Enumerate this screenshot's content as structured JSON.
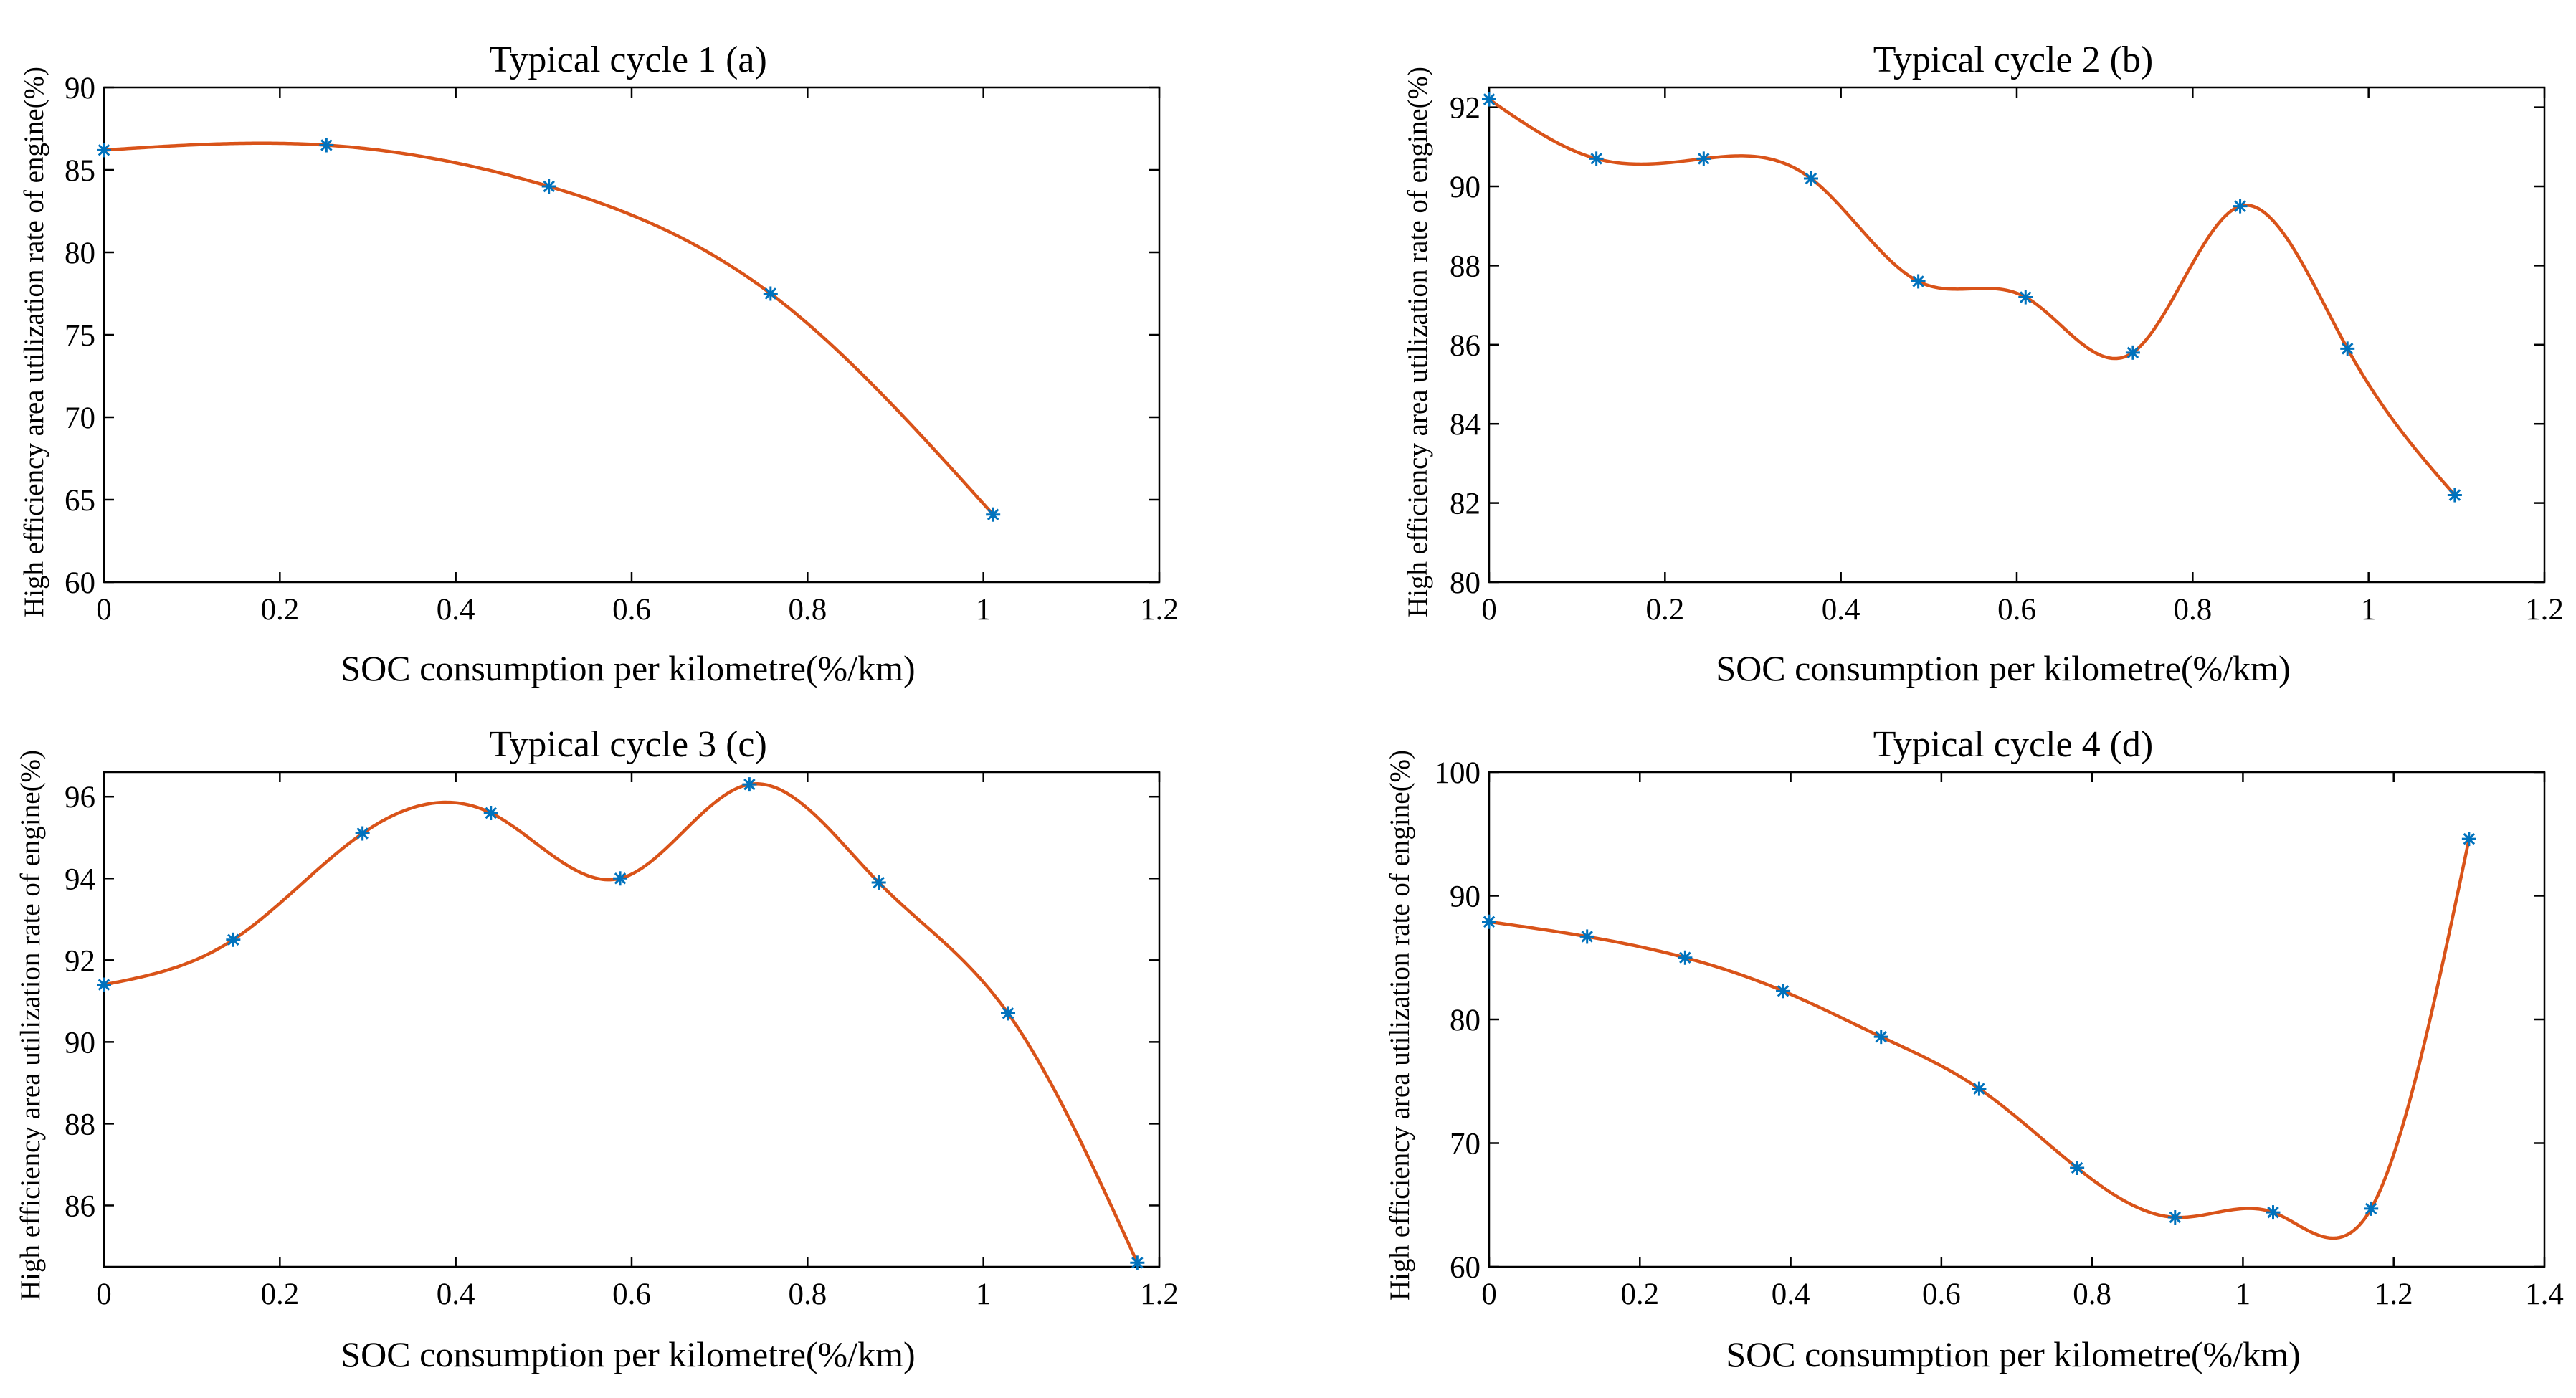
{
  "figure": {
    "x_label": "SOC consumption per kilometre(%/km)",
    "y_label": "High efficiency area utilization rate of engine(%)"
  },
  "colors": {
    "curve": "#D95319",
    "marker": "#0072BD",
    "axis": "#000000",
    "background": "#FFFFFF"
  },
  "chart_data": [
    {
      "type": "line",
      "title": "Typical cycle 1 (a)",
      "xlabel": "SOC consumption per kilometre(%/km)",
      "ylabel": "High efficiency area utilization rate of engine(%)",
      "xlim": [
        0,
        1.2
      ],
      "ylim": [
        60,
        90
      ],
      "xticks": [
        0,
        0.2,
        0.4,
        0.6,
        0.8,
        1,
        1.2
      ],
      "yticks": [
        60,
        65,
        70,
        75,
        80,
        85,
        90
      ],
      "grid": false,
      "marker": "asterisk",
      "x": [
        0,
        0.253,
        0.506,
        0.758,
        1.011
      ],
      "y": [
        86.2,
        86.5,
        84.0,
        77.5,
        64.1
      ]
    },
    {
      "type": "line",
      "title": "Typical cycle 2 (b)",
      "xlabel": "SOC consumption per kilometre(%/km)",
      "ylabel": "High efficiency area utilization rate of engine(%)",
      "xlim": [
        0,
        1.2
      ],
      "ylim": [
        80,
        92.5
      ],
      "xticks": [
        0,
        0.2,
        0.4,
        0.6,
        0.8,
        1,
        1.2
      ],
      "yticks": [
        80,
        82,
        84,
        86,
        88,
        90,
        92
      ],
      "grid": false,
      "marker": "asterisk",
      "x": [
        0,
        0.122,
        0.244,
        0.366,
        0.488,
        0.61,
        0.732,
        0.854,
        0.976,
        1.098
      ],
      "y": [
        92.2,
        90.7,
        90.7,
        90.2,
        87.6,
        87.2,
        85.8,
        89.5,
        85.9,
        82.2
      ]
    },
    {
      "type": "line",
      "title": "Typical cycle 3 (c)",
      "xlabel": "SOC consumption per kilometre(%/km)",
      "ylabel": "High efficiency area utilization rate of engine(%)",
      "xlim": [
        0,
        1.2
      ],
      "ylim": [
        84.5,
        96.6
      ],
      "xticks": [
        0,
        0.2,
        0.4,
        0.6,
        0.8,
        1,
        1.2
      ],
      "yticks": [
        86,
        88,
        90,
        92,
        94,
        96
      ],
      "grid": false,
      "marker": "asterisk",
      "x": [
        0,
        0.147,
        0.294,
        0.44,
        0.587,
        0.734,
        0.881,
        1.028,
        1.175
      ],
      "y": [
        91.4,
        92.5,
        95.1,
        95.6,
        94.0,
        96.3,
        93.9,
        90.7,
        84.6
      ]
    },
    {
      "type": "line",
      "title": "Typical cycle 4 (d)",
      "xlabel": "SOC consumption per kilometre(%/km)",
      "ylabel": "High efficiency area utilization rate of engine(%)",
      "xlim": [
        0,
        1.4
      ],
      "ylim": [
        60,
        100
      ],
      "xticks": [
        0,
        0.2,
        0.4,
        0.6,
        0.8,
        1,
        1.2,
        1.4
      ],
      "yticks": [
        60,
        70,
        80,
        90,
        100
      ],
      "grid": false,
      "marker": "asterisk",
      "x": [
        0,
        0.13,
        0.26,
        0.39,
        0.52,
        0.65,
        0.78,
        0.91,
        1.04,
        1.17,
        1.3
      ],
      "y": [
        87.9,
        86.7,
        85.0,
        82.3,
        78.6,
        74.4,
        68.0,
        64.0,
        64.4,
        64.7,
        94.6
      ]
    }
  ]
}
